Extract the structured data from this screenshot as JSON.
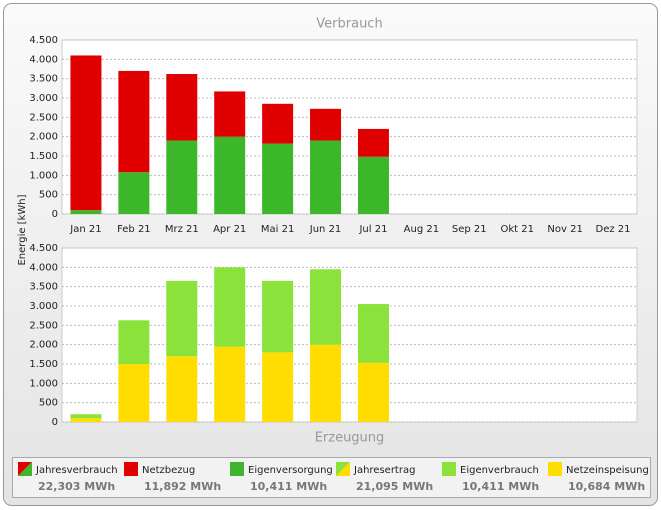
{
  "chart_data": [
    {
      "type": "stacked_bar",
      "title": "Verbrauch",
      "ylabel": "Energie [kWh]",
      "categories": [
        "Jan 21",
        "Feb 21",
        "Mrz 21",
        "Apr 21",
        "Mai 21",
        "Jun 21",
        "Jul 21",
        "Aug 21",
        "Sep 21",
        "Okt 21",
        "Nov 21",
        "Dez 21"
      ],
      "series": [
        {
          "name": "Netzbezug",
          "color": "#e00000",
          "total": "11,892 MWh",
          "values": [
            4000,
            2620,
            1720,
            1170,
            1030,
            820,
            720,
            null,
            null,
            null,
            null,
            null
          ]
        },
        {
          "name": "Eigenversorgung",
          "color": "#3cb72a",
          "total": "10,411 MWh",
          "values": [
            100,
            1080,
            1900,
            2000,
            1820,
            1900,
            1480,
            null,
            null,
            null,
            null,
            null
          ]
        }
      ],
      "summary": {
        "name": "Jahresverbrauch",
        "total": "22,303 MWh"
      },
      "ylim": [
        0,
        4500
      ],
      "yticks": [
        0,
        500,
        {
          "value": 1000,
          "label": "1.000"
        },
        {
          "value": 1500,
          "label": "1.500"
        },
        {
          "value": 2000,
          "label": "2.000"
        },
        {
          "value": 2500,
          "label": "2.500"
        },
        {
          "value": 3000,
          "label": "3.000"
        },
        {
          "value": 3500,
          "label": "3.500"
        },
        {
          "value": 4000,
          "label": "4.000"
        },
        {
          "value": 4500,
          "label": "4.500"
        }
      ],
      "grid": true
    },
    {
      "type": "stacked_bar",
      "title": "Erzeugung",
      "categories": [
        null,
        null,
        null,
        null,
        null,
        null,
        null,
        null,
        null,
        null,
        null,
        null
      ],
      "series": [
        {
          "name": "Eigenverbrauch",
          "color": "#8ae23a",
          "total": "10,411 MWh",
          "values": [
            100,
            1130,
            1950,
            2050,
            1850,
            1950,
            1520,
            null,
            null,
            null,
            null,
            null
          ]
        },
        {
          "name": "Netzeinspeisung",
          "color": "#ffdd00",
          "total": "10,684 MWh",
          "values": [
            100,
            1500,
            1700,
            1950,
            1800,
            2000,
            1530,
            null,
            null,
            null,
            null,
            null
          ]
        }
      ],
      "summary": {
        "name": "Jahresertrag",
        "total": "21,095 MWh"
      },
      "ylim": [
        0,
        4500
      ],
      "yticks": [
        0,
        500,
        {
          "value": 1000,
          "label": "1.000"
        },
        {
          "value": 1500,
          "label": "1.500"
        },
        {
          "value": 2000,
          "label": "2.000"
        },
        {
          "value": 2500,
          "label": "2.500"
        },
        {
          "value": 3000,
          "label": "3.000"
        },
        {
          "value": 3500,
          "label": "3.500"
        },
        {
          "value": 4000,
          "label": "4.000"
        },
        {
          "value": 4500,
          "label": "4.500"
        }
      ],
      "grid": true
    }
  ]
}
